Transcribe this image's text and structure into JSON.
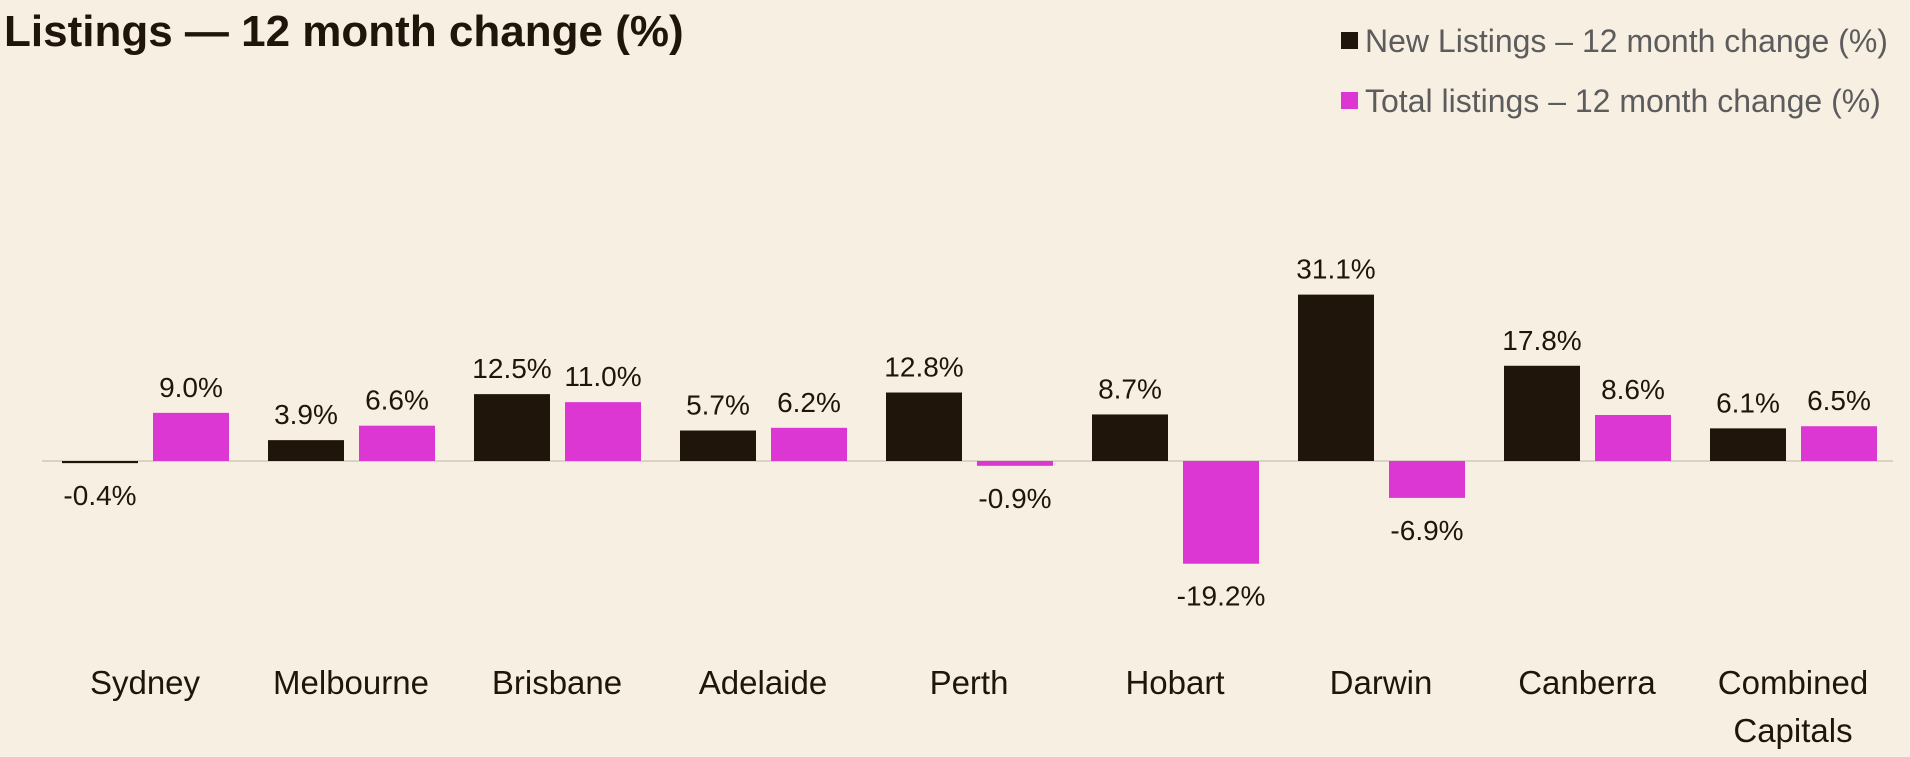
{
  "chart_data": {
    "type": "bar",
    "title": "Listings — 12 month change (%)",
    "xlabel": "",
    "ylabel": "",
    "ylim": [
      -25,
      35
    ],
    "grid": false,
    "legend_position": "top-right",
    "categories": [
      "Sydney",
      "Melbourne",
      "Brisbane",
      "Adelaide",
      "Perth",
      "Hobart",
      "Darwin",
      "Canberra",
      "Combined Capitals"
    ],
    "series": [
      {
        "name": "New Listings – 12 month change (%)",
        "color": "#1f150a",
        "values": [
          -0.4,
          3.9,
          12.5,
          5.7,
          12.8,
          8.7,
          31.1,
          17.8,
          6.1
        ],
        "labels": [
          "-0.4%",
          "3.9%",
          "12.5%",
          "5.7%",
          "12.8%",
          "8.7%",
          "31.1%",
          "17.8%",
          "6.1%"
        ]
      },
      {
        "name": "Total listings – 12 month change (%)",
        "color": "#dc37d2",
        "values": [
          9.0,
          6.6,
          11.0,
          6.2,
          -0.9,
          -19.2,
          -6.9,
          8.6,
          6.5
        ],
        "labels": [
          "9.0%",
          "6.6%",
          "11.0%",
          "6.2%",
          "-0.9%",
          "-19.2%",
          "-6.9%",
          "8.6%",
          "6.5%"
        ]
      }
    ],
    "baseline_color": "#d9d2c5"
  }
}
